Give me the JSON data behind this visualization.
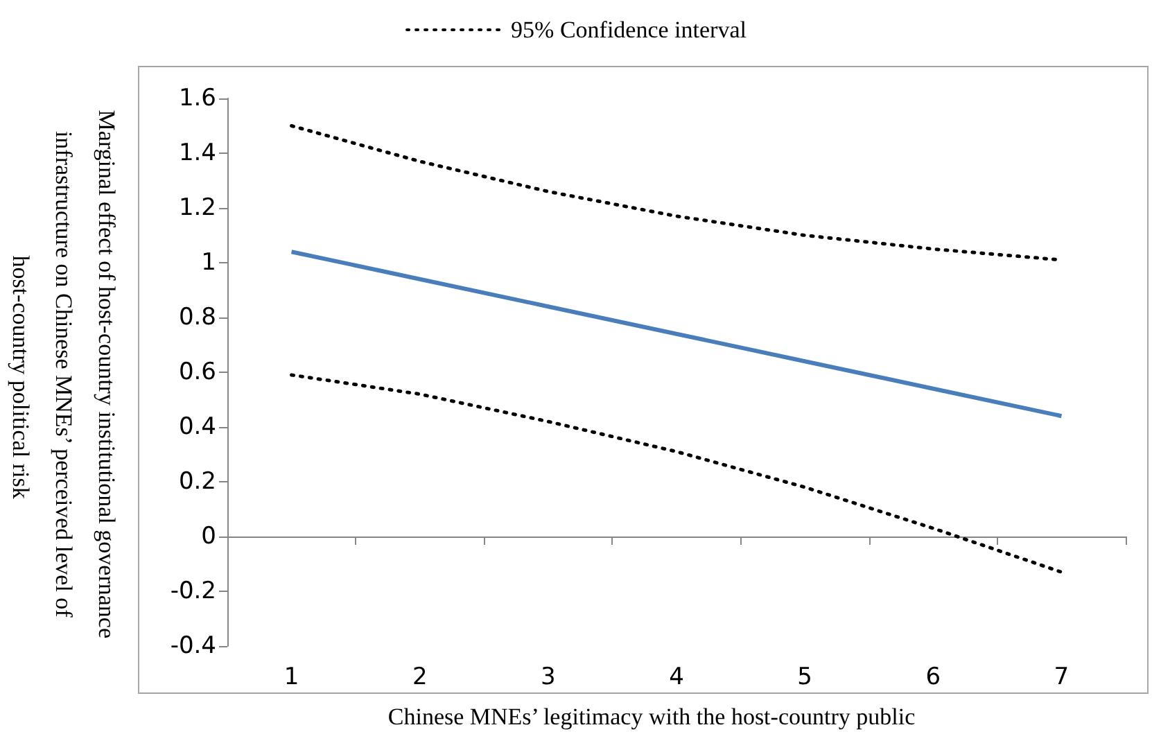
{
  "chart_data": {
    "type": "line",
    "xlabel": "Chinese MNEs’ legitimacy with the host-country public",
    "ylabel": "Marginal effect of host-country institutional governance infrastructure on Chinese MNEs’ perceived level of host-country political risk",
    "categories": [
      "1",
      "2",
      "3",
      "4",
      "5",
      "6",
      "7"
    ],
    "series": [
      {
        "color": "#4a7ebb",
        "line_style": "solid",
        "values": [
          1.04,
          0.94,
          0.84,
          0.74,
          0.64,
          0.54,
          0.44
        ]
      },
      {
        "name": "95% Confidence interval",
        "color": "#000000",
        "line_style": "dotted",
        "values": [
          1.5,
          1.37,
          1.26,
          1.17,
          1.1,
          1.05,
          1.01
        ]
      },
      {
        "color": "#000000",
        "line_style": "dotted",
        "values": [
          0.59,
          0.52,
          0.42,
          0.31,
          0.18,
          0.03,
          -0.13
        ]
      }
    ],
    "ylim": [
      -0.4,
      1.6
    ],
    "yticks": [
      -0.4,
      -0.2,
      0,
      0.2,
      0.4,
      0.6,
      0.8,
      1,
      1.2,
      1.4,
      1.6
    ],
    "legend": "top",
    "marker": "none"
  }
}
